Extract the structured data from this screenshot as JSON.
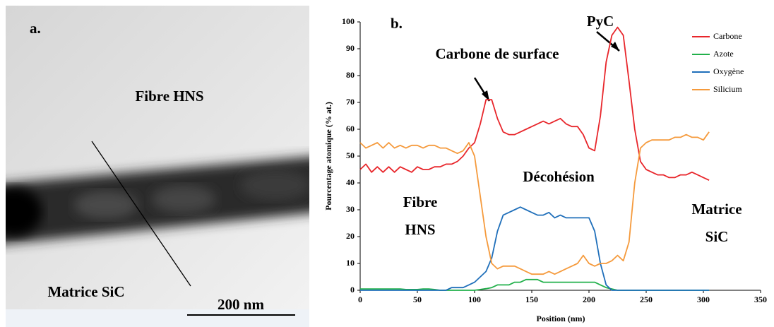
{
  "image_panel": {
    "label": "a.",
    "fiber": "Fibre HNS",
    "matrix": "Matrice SiC",
    "scale_bar": "200 nm"
  },
  "chart_data": {
    "type": "line",
    "panel_label": "b.",
    "xlabel": "Position (nm)",
    "ylabel": "Pourcentage atomique (% at.)",
    "xlim": [
      0,
      350
    ],
    "ylim": [
      0,
      100
    ],
    "xticks": [
      0,
      50,
      100,
      150,
      200,
      250,
      300,
      350
    ],
    "yticks": [
      0,
      10,
      20,
      30,
      40,
      50,
      60,
      70,
      80,
      90,
      100
    ],
    "legend": "upper right",
    "grid": false,
    "annotations": [
      [
        "Carbone de surface"
      ],
      [
        "PyC"
      ],
      [
        "Décohésion"
      ],
      [
        "Fibre",
        "HNS"
      ],
      [
        "Matrice",
        "SiC"
      ]
    ],
    "x": [
      0,
      5,
      10,
      15,
      20,
      25,
      30,
      35,
      40,
      45,
      50,
      55,
      60,
      65,
      70,
      75,
      80,
      85,
      90,
      95,
      100,
      105,
      110,
      115,
      120,
      125,
      130,
      135,
      140,
      145,
      150,
      155,
      160,
      165,
      170,
      175,
      180,
      185,
      190,
      195,
      200,
      205,
      210,
      215,
      220,
      225,
      230,
      235,
      240,
      245,
      250,
      255,
      260,
      265,
      270,
      275,
      280,
      285,
      290,
      295,
      300,
      305
    ],
    "series": [
      {
        "name": "Carbone",
        "color": "#e8262b",
        "values": [
          45,
          47,
          44,
          46,
          44,
          46,
          44,
          46,
          45,
          44,
          46,
          45,
          45,
          46,
          46,
          47,
          47,
          48,
          50,
          53,
          55,
          62,
          71,
          71,
          64,
          59,
          58,
          58,
          59,
          60,
          61,
          62,
          63,
          62,
          63,
          64,
          62,
          61,
          61,
          58,
          53,
          52,
          65,
          85,
          95,
          98,
          95,
          78,
          60,
          48,
          45,
          44,
          43,
          43,
          42,
          42,
          43,
          43,
          44,
          43,
          42,
          41
        ]
      },
      {
        "name": "Azote",
        "color": "#22b04b",
        "values": [
          0.5,
          0.5,
          0.5,
          0.5,
          0.5,
          0.5,
          0.5,
          0.5,
          0.3,
          0.3,
          0.3,
          0.5,
          0.5,
          0.3,
          0,
          0,
          0,
          0,
          0,
          0,
          0,
          0.3,
          0.6,
          1,
          2,
          2,
          2,
          3,
          3,
          4,
          4,
          4,
          3,
          3,
          3,
          3,
          3,
          3,
          3,
          3,
          3,
          3,
          2,
          1,
          0.5,
          0,
          0,
          0,
          0,
          0,
          0,
          0,
          0,
          0,
          0,
          0,
          0,
          0,
          0,
          0,
          0,
          0
        ]
      },
      {
        "name": "Oxygène",
        "color": "#1f6fba",
        "values": [
          0,
          0,
          0,
          0,
          0,
          0,
          0,
          0,
          0,
          0,
          0,
          0,
          0,
          0,
          0,
          0,
          1,
          1,
          1,
          2,
          3,
          5,
          7,
          12,
          22,
          28,
          29,
          30,
          31,
          30,
          29,
          28,
          28,
          29,
          27,
          28,
          27,
          27,
          27,
          27,
          27,
          22,
          10,
          2,
          0,
          0,
          0,
          0,
          0,
          0,
          0,
          0,
          0,
          0,
          0,
          0,
          0,
          0,
          0,
          0,
          0,
          0
        ]
      },
      {
        "name": "Silicium",
        "color": "#f59a3c",
        "values": [
          55,
          53,
          54,
          55,
          53,
          55,
          53,
          54,
          53,
          54,
          54,
          53,
          54,
          54,
          53,
          53,
          52,
          51,
          52,
          55,
          50,
          35,
          20,
          10,
          8,
          9,
          9,
          9,
          8,
          7,
          6,
          6,
          6,
          7,
          6,
          7,
          8,
          9,
          10,
          13,
          10,
          9,
          10,
          10,
          11,
          13,
          11,
          18,
          40,
          53,
          55,
          56,
          56,
          56,
          56,
          57,
          57,
          58,
          57,
          57,
          56,
          59
        ]
      }
    ]
  }
}
